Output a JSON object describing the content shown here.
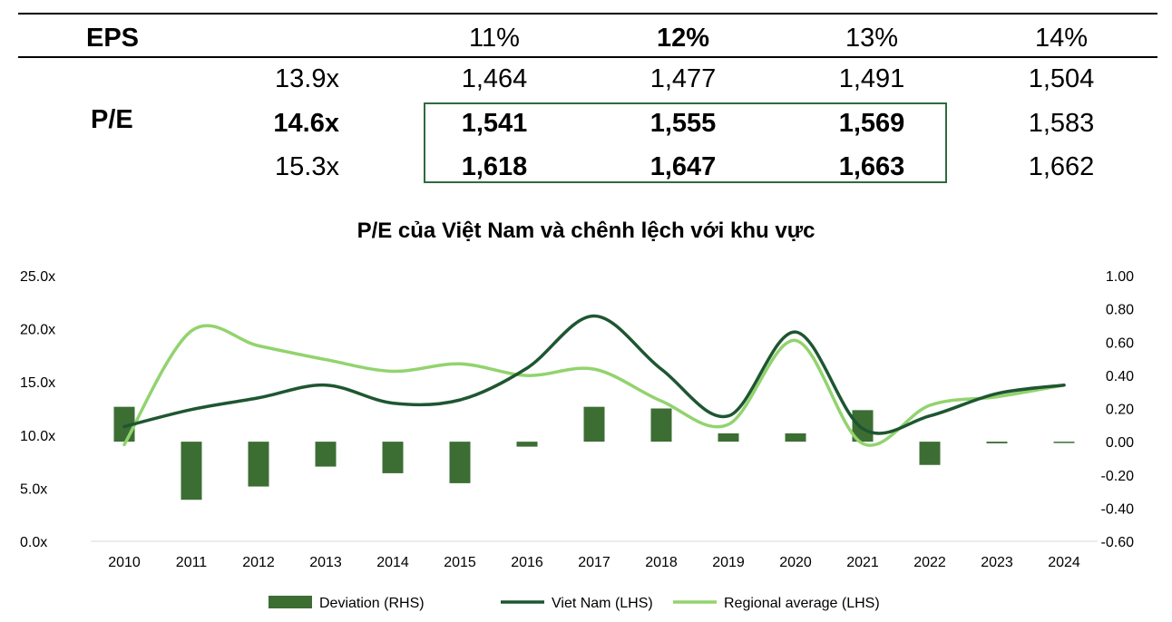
{
  "sensitivity_table": {
    "eps_label": "EPS",
    "pe_label": "P/E",
    "eps_growth": [
      "11%",
      "12%",
      "13%",
      "14%"
    ],
    "rows": [
      {
        "pe": "13.9x",
        "values": [
          "1,464",
          "1,477",
          "1,491",
          "1,504"
        ]
      },
      {
        "pe": "14.6x",
        "values": [
          "1,541",
          "1,555",
          "1,569",
          "1,583"
        ]
      },
      {
        "pe": "15.3x",
        "values": [
          "1,618",
          "1,647",
          "1,663",
          "1,662"
        ]
      }
    ]
  },
  "chart_data": {
    "type": "bar+line",
    "title": "P/E của Việt Nam và chênh lệch với khu vực",
    "categories": [
      "2010",
      "2011",
      "2012",
      "2013",
      "2014",
      "2015",
      "2016",
      "2017",
      "2018",
      "2019",
      "2020",
      "2021",
      "2022",
      "2023",
      "2024"
    ],
    "left_axis": {
      "min": 0,
      "max": 25,
      "ticks": [
        "0.0x",
        "5.0x",
        "10.0x",
        "15.0x",
        "20.0x",
        "25.0x"
      ]
    },
    "right_axis": {
      "min": -0.6,
      "max": 1.0,
      "ticks": [
        "-0.60",
        "-0.40",
        "-0.20",
        "0.00",
        "0.20",
        "0.40",
        "0.60",
        "0.80",
        "1.00"
      ]
    },
    "series": [
      {
        "name": "Deviation (RHS)",
        "type": "bar",
        "axis": "right",
        "color": "#3c6e34",
        "values": [
          0.21,
          -0.35,
          -0.27,
          -0.15,
          -0.19,
          -0.25,
          -0.03,
          0.21,
          0.2,
          0.05,
          0.05,
          0.19,
          -0.14,
          -0.01,
          -0.005
        ]
      },
      {
        "name": "Viet Nam (LHS)",
        "type": "line",
        "axis": "left",
        "color": "#1e5631",
        "values": [
          10.8,
          12.4,
          13.5,
          14.7,
          13.0,
          13.3,
          16.3,
          21.2,
          16.2,
          11.8,
          19.7,
          10.6,
          11.8,
          13.9,
          14.7
        ]
      },
      {
        "name": "Regional average (LHS)",
        "type": "line",
        "axis": "left",
        "color": "#92d36e",
        "values": [
          9.1,
          19.8,
          18.4,
          17.1,
          16.0,
          16.7,
          15.6,
          16.2,
          13.2,
          11.0,
          18.9,
          9.2,
          12.8,
          13.6,
          14.7
        ]
      }
    ],
    "legend_position": "bottom",
    "grid": false
  }
}
